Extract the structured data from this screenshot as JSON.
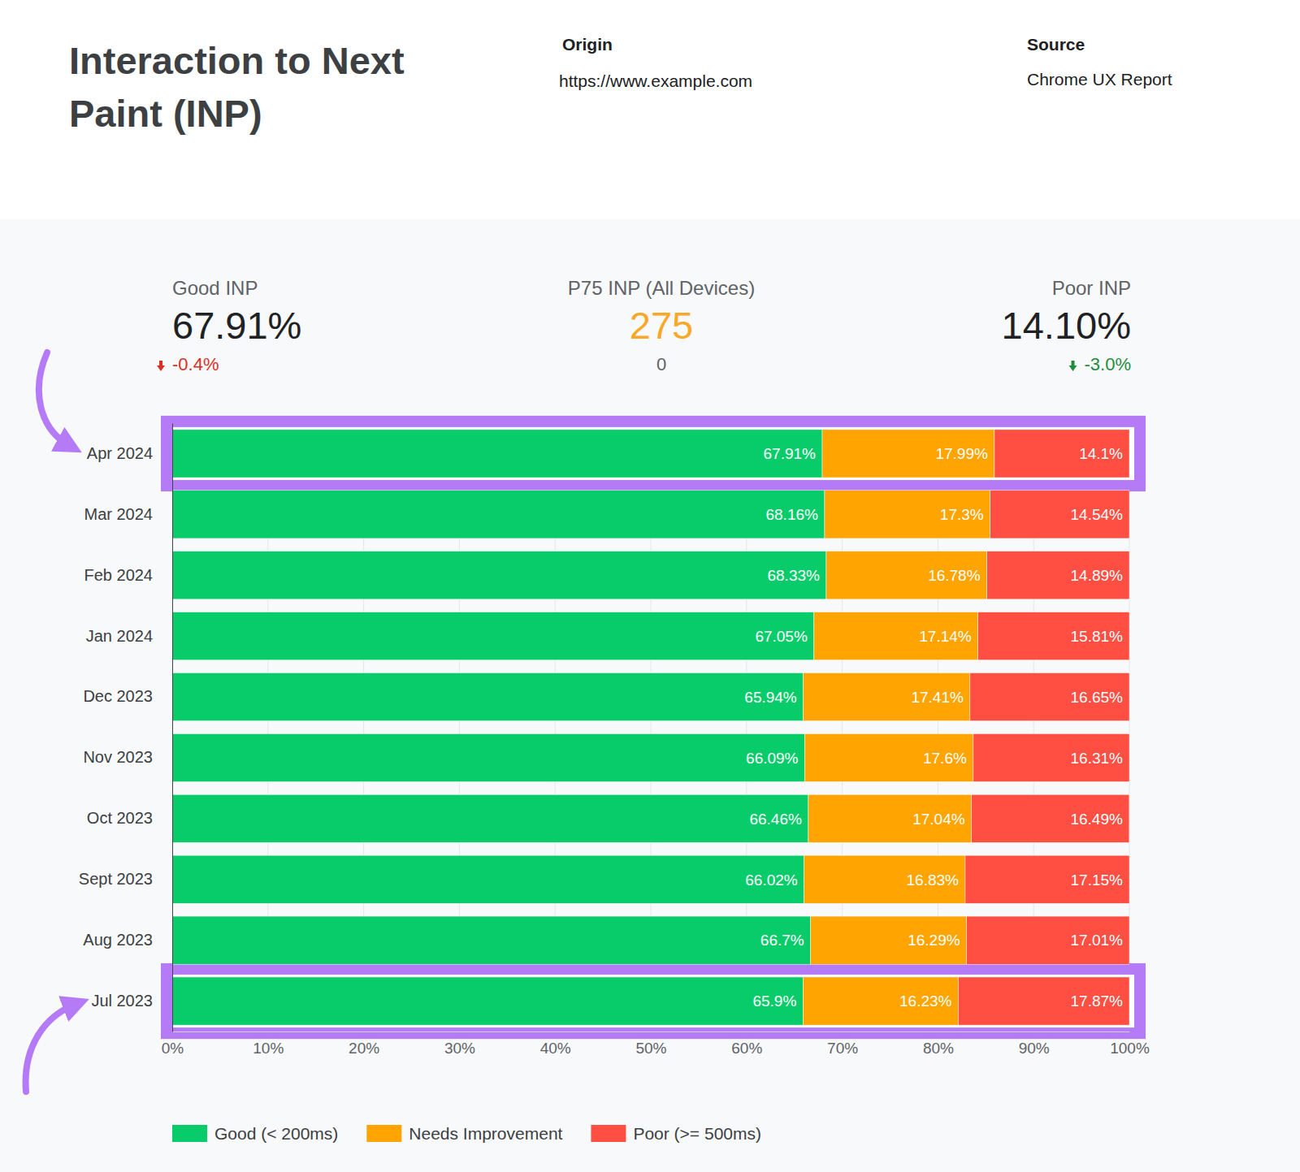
{
  "header": {
    "title": "Interaction to Next Paint (INP)",
    "origin_label": "Origin",
    "origin": "https://www.example.com",
    "source_label": "Source",
    "source": "Chrome UX Report"
  },
  "kpis": [
    {
      "label": "Good INP",
      "value": "67.91%",
      "change": "-0.4%"
    },
    {
      "label": "P75 INP (All Devices)",
      "value": "275",
      "change": "0"
    },
    {
      "label": "Poor INP",
      "value": "14.10%",
      "change": "-3.0%"
    }
  ],
  "chart_data": {
    "type": "bar",
    "orientation": "horizontal",
    "stacked": true,
    "data_labels": true,
    "grid": true,
    "legend": "bottom",
    "categories": [
      "Apr 2024",
      "Mar 2024",
      "Feb 2024",
      "Jan 2024",
      "Dec 2023",
      "Nov 2023",
      "Oct 2023",
      "Sept 2023",
      "Aug 2023",
      "Jul 2023"
    ],
    "series": [
      {
        "name": "Good (< 200ms)",
        "color": "#08cc6a",
        "values": [
          67.91,
          68.16,
          68.33,
          67.05,
          65.94,
          66.09,
          66.46,
          66.02,
          66.7,
          65.9
        ],
        "value_labels": [
          "67.91%",
          "68.16%",
          "68.33%",
          "67.05%",
          "65.94%",
          "66.09%",
          "66.46%",
          "66.02%",
          "66.7%",
          "65.9%"
        ]
      },
      {
        "name": "Needs Improvement",
        "color": "#ffa400",
        "values": [
          17.99,
          17.3,
          16.78,
          17.14,
          17.41,
          17.6,
          17.04,
          16.83,
          16.29,
          16.23
        ],
        "value_labels": [
          "17.99%",
          "17.3%",
          "16.78%",
          "17.14%",
          "17.41%",
          "17.6%",
          "17.04%",
          "16.83%",
          "16.29%",
          "16.23%"
        ]
      },
      {
        "name": "Poor (>= 500ms)",
        "color": "#ff4e42",
        "values": [
          14.1,
          14.54,
          14.89,
          15.81,
          16.65,
          16.31,
          16.49,
          17.15,
          17.01,
          17.87
        ],
        "value_labels": [
          "14.1%",
          "14.54%",
          "14.89%",
          "15.81%",
          "16.65%",
          "16.31%",
          "16.49%",
          "17.15%",
          "17.01%",
          "17.87%"
        ]
      }
    ],
    "xlim": [
      0,
      100
    ],
    "xticks": [
      {
        "value": 0,
        "label": "0%"
      },
      {
        "value": 10,
        "label": "10%"
      },
      {
        "value": 20,
        "label": "20%"
      },
      {
        "value": 30,
        "label": "30%"
      },
      {
        "value": 40,
        "label": "40%"
      },
      {
        "value": 50,
        "label": "50%"
      },
      {
        "value": 60,
        "label": "60%"
      },
      {
        "value": 70,
        "label": "70%"
      },
      {
        "value": 80,
        "label": "80%"
      },
      {
        "value": 90,
        "label": "90%"
      },
      {
        "value": 100,
        "label": "100%"
      }
    ]
  }
}
